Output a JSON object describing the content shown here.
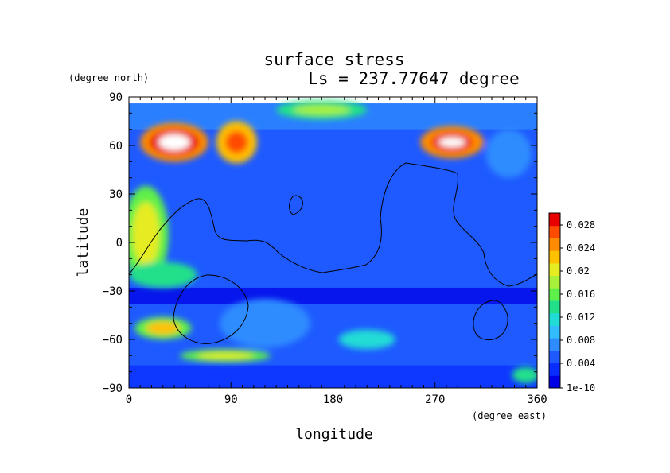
{
  "chart_data": {
    "type": "heatmap",
    "title": "surface stress",
    "subtitle": "Ls = 237.77647 degree",
    "xlabel": "longitude",
    "ylabel": "latitude",
    "x_units": "(degree_east)",
    "y_units": "(degree_north)",
    "xlim": [
      0,
      360
    ],
    "ylim": [
      -90,
      90
    ],
    "x_ticks": [
      "0",
      "90",
      "180",
      "270",
      "360"
    ],
    "y_ticks": [
      "90",
      "60",
      "30",
      "0",
      "−30",
      "−60",
      "−90"
    ],
    "colorbar": {
      "labels": [
        "0.028",
        "0.024",
        "0.02",
        "0.016",
        "0.012",
        "0.008",
        "0.004",
        "1e-10"
      ],
      "colors": [
        "#0000e6",
        "#0a2dff",
        "#1e5aff",
        "#2f8cff",
        "#33bbff",
        "#21dcd6",
        "#22e08a",
        "#5ef04a",
        "#a8f03a",
        "#e6ec22",
        "#ffc000",
        "#ff8c00",
        "#ff4b00",
        "#e80000"
      ],
      "range": [
        0,
        0.03
      ]
    },
    "grid": false,
    "legend": "colorbar-right",
    "regions": [
      {
        "lon": 40,
        "lat": 62,
        "rlon": 30,
        "rlat": 12,
        "value": 0.024
      },
      {
        "lon": 40,
        "lat": 62,
        "rlon": 22,
        "rlat": 8,
        "value": 0.028
      },
      {
        "lon": 40,
        "lat": 62,
        "rlon": 14,
        "rlat": 5,
        "value": 0.031
      },
      {
        "lon": 95,
        "lat": 62,
        "rlon": 18,
        "rlat": 13,
        "value": 0.022
      },
      {
        "lon": 95,
        "lat": 62,
        "rlon": 10,
        "rlat": 7,
        "value": 0.026
      },
      {
        "lon": 285,
        "lat": 62,
        "rlon": 28,
        "rlat": 10,
        "value": 0.024
      },
      {
        "lon": 285,
        "lat": 62,
        "rlon": 18,
        "rlat": 6,
        "value": 0.028
      },
      {
        "lon": 285,
        "lat": 62,
        "rlon": 12,
        "rlat": 3,
        "value": 0.031
      },
      {
        "lon": 170,
        "lat": 82,
        "rlon": 40,
        "rlat": 6,
        "value": 0.014
      },
      {
        "lon": 170,
        "lat": 82,
        "rlon": 25,
        "rlat": 3,
        "value": 0.018
      },
      {
        "lon": 15,
        "lat": 5,
        "rlon": 20,
        "rlat": 30,
        "value": 0.016
      },
      {
        "lon": 15,
        "lat": 5,
        "rlon": 12,
        "rlat": 20,
        "value": 0.02
      },
      {
        "lon": 30,
        "lat": -20,
        "rlon": 30,
        "rlat": 8,
        "value": 0.014
      },
      {
        "lon": 30,
        "lat": -53,
        "rlon": 25,
        "rlat": 7,
        "value": 0.016
      },
      {
        "lon": 30,
        "lat": -53,
        "rlon": 15,
        "rlat": 4,
        "value": 0.022
      },
      {
        "lon": 85,
        "lat": -70,
        "rlon": 40,
        "rlat": 4,
        "value": 0.016
      },
      {
        "lon": 85,
        "lat": -70,
        "rlon": 25,
        "rlat": 2,
        "value": 0.02
      },
      {
        "lon": 210,
        "lat": -60,
        "rlon": 25,
        "rlat": 6,
        "value": 0.012
      },
      {
        "lon": 350,
        "lat": -82,
        "rlon": 12,
        "rlat": 5,
        "value": 0.014
      },
      {
        "lon": 335,
        "lat": 55,
        "rlon": 20,
        "rlat": 15,
        "value": 0.008
      },
      {
        "lon": 120,
        "lat": -50,
        "rlon": 40,
        "rlat": 15,
        "value": 0.008
      }
    ]
  }
}
